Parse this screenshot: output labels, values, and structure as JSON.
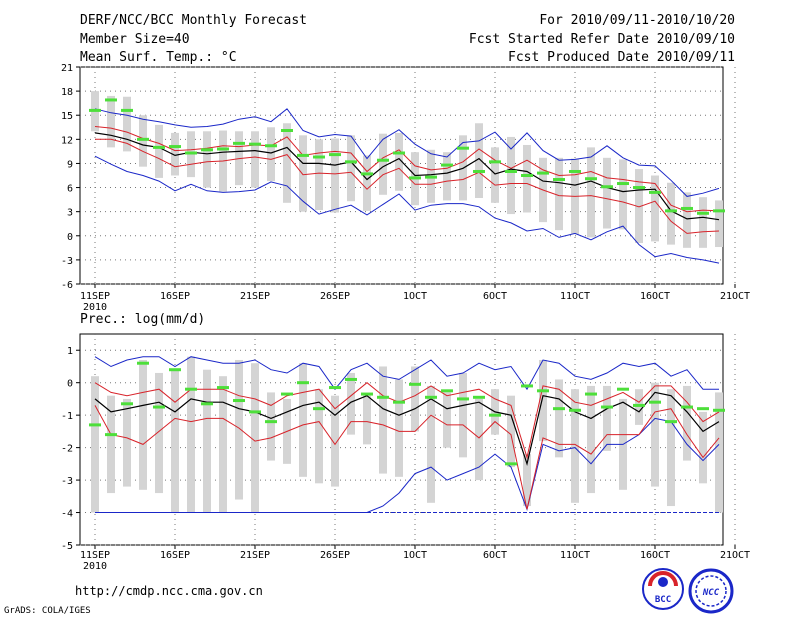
{
  "header": {
    "left": [
      "DERF/NCC/BCC Monthly Forecast",
      "Member Size=40",
      "Mean Surf. Temp.: °C"
    ],
    "right": [
      "For 2010/09/11-2010/10/20",
      "Fcst Started Refer Date 2010/09/10",
      "Fcst Produced Date 2010/09/11"
    ]
  },
  "footer": {
    "url": "http://cmdp.ncc.cma.gov.cn",
    "credit": "GrADS: COLA/IGES"
  },
  "logos": {
    "bcc_text": "BCC",
    "ncc_text": "NCC"
  },
  "colors": {
    "box": "#d4d4d4",
    "mean": "#4ddf3a",
    "ens": "#000000",
    "spread": "#d8232a",
    "extreme": "#1a27c8",
    "grid": "#777777"
  },
  "chart_data": [
    {
      "type": "line",
      "title": "Mean Surf. Temp.: °C",
      "x_ticks": [
        "11SEP",
        "16SEP",
        "21SEP",
        "26SEP",
        "1OCT",
        "6OCT",
        "11OCT",
        "16OCT",
        "21OCT"
      ],
      "x_year_label": "2010",
      "ylim": [
        -6,
        21
      ],
      "y_ticks": [
        -6,
        -3,
        0,
        3,
        6,
        9,
        12,
        15,
        18,
        21
      ],
      "days": 40,
      "series": [
        {
          "name": "ensemble max",
          "values": [
            15.8,
            15.3,
            15,
            14.5,
            14.2,
            13.8,
            13.5,
            13.6,
            13.9,
            14.5,
            14.8,
            14.2,
            15.8,
            13.1,
            12.3,
            12.6,
            12.4,
            9.6,
            12,
            13.2,
            11.4,
            10.2,
            9.8,
            11.6,
            11.8,
            12.9,
            10.8,
            12.8,
            10.6,
            9.4,
            9.5,
            9.8,
            11.2,
            9.7,
            8.8,
            8.7,
            6.9,
            4.9,
            5.3,
            5.9
          ]
        },
        {
          "name": "mean + spread",
          "values": [
            13.6,
            13.4,
            12.9,
            12.1,
            11.5,
            10.6,
            10.7,
            10.9,
            11.2,
            11.1,
            11.3,
            11.2,
            12.3,
            10,
            10.3,
            10.5,
            10.3,
            8,
            9.7,
            10.7,
            8.7,
            8.2,
            8.4,
            9.2,
            10.8,
            9.4,
            8.4,
            9.4,
            8.2,
            7.5,
            7.6,
            8,
            7.2,
            7,
            6.7,
            6.5,
            3.8,
            3,
            3.2,
            3.1
          ]
        },
        {
          "name": "ensemble mean",
          "values": [
            12.8,
            12.5,
            12,
            11.3,
            11,
            10,
            10.4,
            10.2,
            10.4,
            10.5,
            10.6,
            10.3,
            11,
            9,
            9,
            8.8,
            9.2,
            7,
            8.6,
            9.6,
            7.5,
            7.6,
            7.8,
            8.4,
            9.6,
            7.7,
            8.3,
            8,
            6.8,
            6.6,
            6.3,
            6.8,
            6,
            5.5,
            5.7,
            5.8,
            3.1,
            2.1,
            2.3,
            2
          ]
        },
        {
          "name": "mean - spread",
          "values": [
            12,
            12,
            11.5,
            10.5,
            9.6,
            8.6,
            8.9,
            9.2,
            9.3,
            9.6,
            9.8,
            9.5,
            10.1,
            7.6,
            7.8,
            7.7,
            7.9,
            5.8,
            7.6,
            8.4,
            6.4,
            6.4,
            6.8,
            7,
            7.9,
            6.3,
            6.5,
            6.5,
            5.7,
            5,
            4.9,
            5,
            4.6,
            4.2,
            3.6,
            4.3,
            1.8,
            0.3,
            0.5,
            0.6
          ]
        },
        {
          "name": "ensemble min",
          "values": [
            9.9,
            8.9,
            8,
            7.5,
            6.8,
            5.6,
            6.4,
            5.6,
            5.4,
            5.5,
            5.7,
            6.7,
            6.2,
            4.3,
            2.7,
            3.3,
            3.8,
            2.6,
            3.9,
            5.2,
            3.2,
            3.8,
            4,
            4,
            3.6,
            2.2,
            1.6,
            0.6,
            0.9,
            -0.2,
            0.3,
            -0.5,
            0.5,
            1.2,
            -1.1,
            -2.6,
            -2.2,
            -2.7,
            -3,
            -3.4
          ]
        },
        {
          "name": "box top",
          "values": [
            18,
            17.4,
            17.3,
            15,
            13.8,
            12.8,
            13,
            13,
            13.1,
            13,
            13,
            13.5,
            14,
            12.5,
            12,
            12.1,
            12.5,
            10,
            12.7,
            12.8,
            10.4,
            10.7,
            10.4,
            12.5,
            14,
            11,
            12.3,
            11.3,
            9.7,
            9.7,
            9.6,
            11,
            9.7,
            9.5,
            8.3,
            7.5,
            6.6,
            5.4,
            4.8,
            4.4
          ]
        },
        {
          "name": "box bottom",
          "values": [
            13,
            11,
            10.5,
            8.6,
            7.2,
            7.5,
            7.3,
            6,
            5.5,
            6.3,
            6,
            6.8,
            4.1,
            3,
            3.2,
            2.9,
            4.3,
            3.1,
            5.1,
            5.6,
            3.8,
            4.1,
            4.4,
            4.4,
            4.7,
            4.1,
            2.7,
            2.9,
            1.7,
            0.7,
            0.2,
            -0.2,
            0.9,
            0.8,
            -0.9,
            -0.7,
            -1.1,
            -1.5,
            -1.5,
            -1.4
          ]
        },
        {
          "name": "observed",
          "values": [
            15.6,
            16.9,
            15.6,
            12,
            11,
            11.1,
            10.3,
            10.7,
            10.8,
            11.5,
            11.4,
            11.2,
            13.1,
            10,
            9.8,
            10.1,
            9.2,
            7.7,
            9.4,
            10.3,
            7.2,
            7.3,
            8.8,
            10.9,
            8,
            9.2,
            8,
            7.5,
            7.8,
            7,
            8,
            7.1,
            6.1,
            6.5,
            6,
            5.4,
            3.1,
            3.4,
            2.8,
            3.1
          ]
        }
      ]
    },
    {
      "type": "line",
      "title": "Prec.: log(mm/d)",
      "x_ticks": [
        "11SEP",
        "16SEP",
        "21SEP",
        "26SEP",
        "1OCT",
        "6OCT",
        "11OCT",
        "16OCT",
        "21OCT"
      ],
      "x_year_label": "2010",
      "ylim": [
        -5,
        1.5
      ],
      "y_ticks": [
        -5,
        -4,
        -3,
        -2,
        -1,
        0,
        1
      ],
      "days": 40,
      "series": [
        {
          "name": "ensemble max",
          "values": [
            0.8,
            0.5,
            0.7,
            0.8,
            0.8,
            0.5,
            0.8,
            0.7,
            0.6,
            0.6,
            0.7,
            0.4,
            0.3,
            0.6,
            0.5,
            -0.2,
            0.4,
            0.6,
            0.2,
            0.1,
            0.4,
            0.7,
            0.2,
            0.3,
            0.6,
            0.4,
            0.5,
            -0.2,
            0.7,
            0.6,
            0.2,
            0.1,
            0.3,
            0.6,
            0.5,
            0.6,
            0.2,
            0.4,
            -0.2,
            -0.2
          ]
        },
        {
          "name": "mean + spread",
          "values": [
            0,
            -0.3,
            -0.4,
            -0.3,
            -0.2,
            -0.6,
            -0.2,
            -0.2,
            -0.2,
            -0.4,
            -0.5,
            -0.7,
            -0.4,
            -0.3,
            -0.2,
            -0.8,
            -0.4,
            0,
            -0.4,
            -0.6,
            -0.4,
            -0.1,
            -0.4,
            -0.3,
            -0.2,
            -0.5,
            -0.7,
            -2.3,
            -0.1,
            -0.2,
            -0.6,
            -0.7,
            -0.5,
            -0.3,
            -0.6,
            -0.1,
            -0.1,
            -0.6,
            -1.2,
            -0.9
          ]
        },
        {
          "name": "ensemble mean",
          "values": [
            -0.5,
            -0.9,
            -0.8,
            -0.7,
            -0.6,
            -0.9,
            -0.5,
            -0.6,
            -0.6,
            -0.8,
            -0.9,
            -1.1,
            -0.9,
            -0.7,
            -0.6,
            -1,
            -0.6,
            -0.4,
            -0.8,
            -1,
            -0.8,
            -0.5,
            -0.8,
            -0.7,
            -0.6,
            -0.9,
            -1,
            -2.5,
            -0.4,
            -0.5,
            -0.9,
            -1.1,
            -0.8,
            -0.6,
            -0.9,
            -0.3,
            -0.4,
            -0.9,
            -1.5,
            -1.2
          ]
        },
        {
          "name": "mean - spread",
          "values": [
            -0.7,
            -1.6,
            -1.7,
            -1.9,
            -1.5,
            -1.1,
            -1.2,
            -1.1,
            -1.1,
            -1.4,
            -1.8,
            -1.7,
            -1.5,
            -1.3,
            -1.2,
            -1.9,
            -1.2,
            -1.2,
            -1.3,
            -1.5,
            -1.5,
            -1,
            -1.3,
            -1.3,
            -1.7,
            -1.2,
            -1.6,
            -3.9,
            -1.7,
            -1.9,
            -1.9,
            -2.2,
            -1.6,
            -1.6,
            -1.6,
            -0.9,
            -0.8,
            -1.6,
            -2.3,
            -1.7
          ]
        },
        {
          "name": "ensemble min",
          "values": [
            -4,
            -4,
            -4,
            -4,
            -4,
            -4,
            -4,
            -4,
            -4,
            -4,
            -4,
            -4,
            -4,
            -4,
            -4,
            -4,
            -4,
            -4,
            -3.8,
            -3.4,
            -2.8,
            -2.6,
            -3,
            -2.8,
            -2.6,
            -2.2,
            -2.6,
            -3.9,
            -1.9,
            -2.1,
            -2,
            -2.5,
            -1.9,
            -1.9,
            -1.6,
            -1.1,
            -1.2,
            -1.9,
            -2.4,
            -1.9
          ]
        },
        {
          "name": "box top",
          "values": [
            0.2,
            -0.4,
            -0.5,
            0.7,
            0.3,
            0.4,
            0.8,
            0.4,
            0.2,
            0.7,
            0.6,
            -0.3,
            -0.5,
            0.6,
            -0.2,
            -0.4,
            0.3,
            -0.4,
            0.5,
            0.1,
            0.5,
            -0.1,
            -0.3,
            0.3,
            -0.5,
            -0.2,
            -0.4,
            -2.2,
            0.7,
            0.1,
            -0.2,
            -0.1,
            -0.1,
            -0.5,
            -0.2,
            0,
            -0.2,
            -0.1,
            -0.9,
            -0.3
          ]
        },
        {
          "name": "box bottom",
          "values": [
            -4,
            -3.4,
            -3.2,
            -3.3,
            -3.4,
            -4,
            -4,
            -4,
            -4,
            -3.6,
            -4,
            -2.4,
            -2.5,
            -2.9,
            -3.1,
            -3.2,
            -1.6,
            -1.9,
            -2.8,
            -2.9,
            -1.5,
            -3.7,
            -2,
            -2.3,
            -3,
            -1.6,
            -2.6,
            -3.8,
            -1.8,
            -2.3,
            -3.7,
            -3.4,
            -2.1,
            -3.3,
            -1.3,
            -3.2,
            -3.8,
            -2.4,
            -3.1,
            -4
          ]
        },
        {
          "name": "observed",
          "values": [
            -1.3,
            -1.6,
            -0.65,
            0.6,
            -0.75,
            0.4,
            -0.2,
            -0.65,
            -0.15,
            -0.55,
            -0.9,
            -1.2,
            -0.35,
            0,
            -0.8,
            -0.15,
            0.1,
            -0.35,
            -0.45,
            -0.6,
            -0.05,
            -0.45,
            -0.25,
            -0.5,
            -0.45,
            -1,
            -2.5,
            -0.1,
            -0.25,
            -0.8,
            -0.85,
            -0.35,
            -0.75,
            -0.2,
            -0.7,
            -0.6,
            -1.2,
            -0.75,
            -0.8,
            -0.85
          ]
        }
      ]
    }
  ]
}
